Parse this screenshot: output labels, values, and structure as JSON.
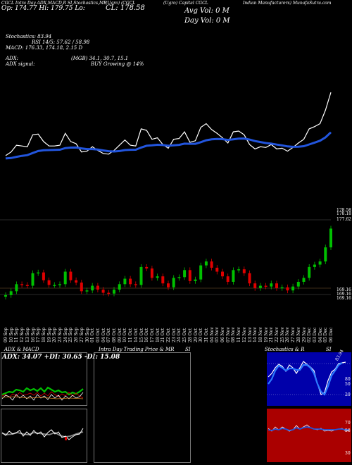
{
  "header": {
    "line1": "CGCL Intra Day ADX,MACD,R",
    "line1b": "SI,Stochastics,MR",
    "line1c": "(Ugro) (CGCL",
    "line1d": "(Ugro) CGCL",
    "title_right": "(Ugro) Capital CGCL",
    "title_far_right": "Indian Manufacturers) MunafaSutra.com",
    "line2": "Op: 174.77 Hi: 179.75 Lo:",
    "close_label": "CL: 178.58",
    "avg_vol": "Avg Vol: 0  M",
    "day_vol": "Day Vol: 0  M",
    "stochastics": "Stochastics: 83.94",
    "rsi": "RSI 14/5: 57.62 / 58.98",
    "macd": "MACD: 176.33, 174.18, 2.15 D",
    "adx": "ADX:",
    "adx_val": "(MGB) 34.1, 30.7, 15.1",
    "adx_signal": "ADX  signal:",
    "adx_signal_val": "BUY Growing @ 14%"
  },
  "price_labels": [
    "178.58",
    "178.18",
    "177.62",
    "169.16",
    "169.16",
    "169.16"
  ],
  "date_labels": [
    "09 Sep",
    "10 Sep",
    "11 Sep",
    "12 Sep",
    "13 Sep",
    "16 Sep",
    "17 Sep",
    "18 Sep",
    "19 Sep",
    "20 Sep",
    "23 Sep",
    "24 Sep",
    "25 Sep",
    "26 Sep",
    "27 Sep",
    "30 Sep",
    "01 Oct",
    "03 Oct",
    "04 Oct",
    "07 Oct",
    "08 Oct",
    "09 Oct",
    "10 Oct",
    "11 Oct",
    "14 Oct",
    "15 Oct",
    "16 Oct",
    "17 Oct",
    "18 Oct",
    "21 Oct",
    "22 Oct",
    "23 Oct",
    "24 Oct",
    "25 Oct",
    "28 Oct",
    "29 Oct",
    "30 Oct",
    "31 Oct",
    "04 Nov",
    "05 Nov",
    "06 Nov",
    "07 Nov",
    "08 Nov",
    "11 Nov",
    "12 Nov",
    "13 Nov",
    "14 Nov",
    "18 Nov",
    "19 Nov",
    "21 Nov",
    "22 Nov",
    "25 Nov",
    "26 Nov",
    "27 Nov",
    "28 Nov",
    "29 Nov",
    "02 Dec",
    "03 Dec",
    "04 Dec",
    "05 Dec",
    "06 Dec"
  ],
  "panels": {
    "adx_title": "ADX  & MACD",
    "adx_values": "ADX: 34.07 +DI: 30.65 -DI: 15.08",
    "intraday_title": "Intra  Day Trading Price  & MR",
    "intraday_title_b": "SI",
    "stoch_title": "Stochastics & R",
    "stoch_title_b": "SI",
    "stoch_ticks": [
      "80",
      "50",
      "20"
    ],
    "stoch_value": "83.94",
    "rsi_ticks": [
      "70",
      "58",
      "30"
    ]
  },
  "colors": {
    "up": "#00c000",
    "down": "#e00000",
    "ema": "#2255dd",
    "stoch_bg": "#0000aa",
    "rsi_bg": "#aa0000"
  },
  "chart_data": {
    "type": "candlestick",
    "series": [
      {
        "name": "close",
        "values": [
          169.1,
          169.6,
          170.5,
          170.4,
          170.3,
          171.9,
          172.0,
          171.0,
          170.4,
          170.4,
          170.5,
          172.1,
          171.0,
          170.7,
          169.6,
          169.7,
          170.3,
          169.8,
          169.4,
          169.3,
          169.8,
          170.5,
          171.2,
          170.5,
          170.4,
          172.7,
          172.5,
          171.3,
          171.5,
          170.6,
          170.1,
          171.3,
          171.4,
          172.3,
          170.9,
          171.1,
          172.9,
          173.4,
          172.6,
          172.1,
          171.5,
          170.8,
          172.3,
          172.4,
          171.9,
          170.6,
          170.0,
          170.3,
          170.2,
          170.6,
          170.0,
          170.1,
          169.7,
          170.2,
          170.8,
          171.3,
          172.7,
          173.0,
          173.4,
          175.2,
          177.6
        ]
      }
    ]
  }
}
